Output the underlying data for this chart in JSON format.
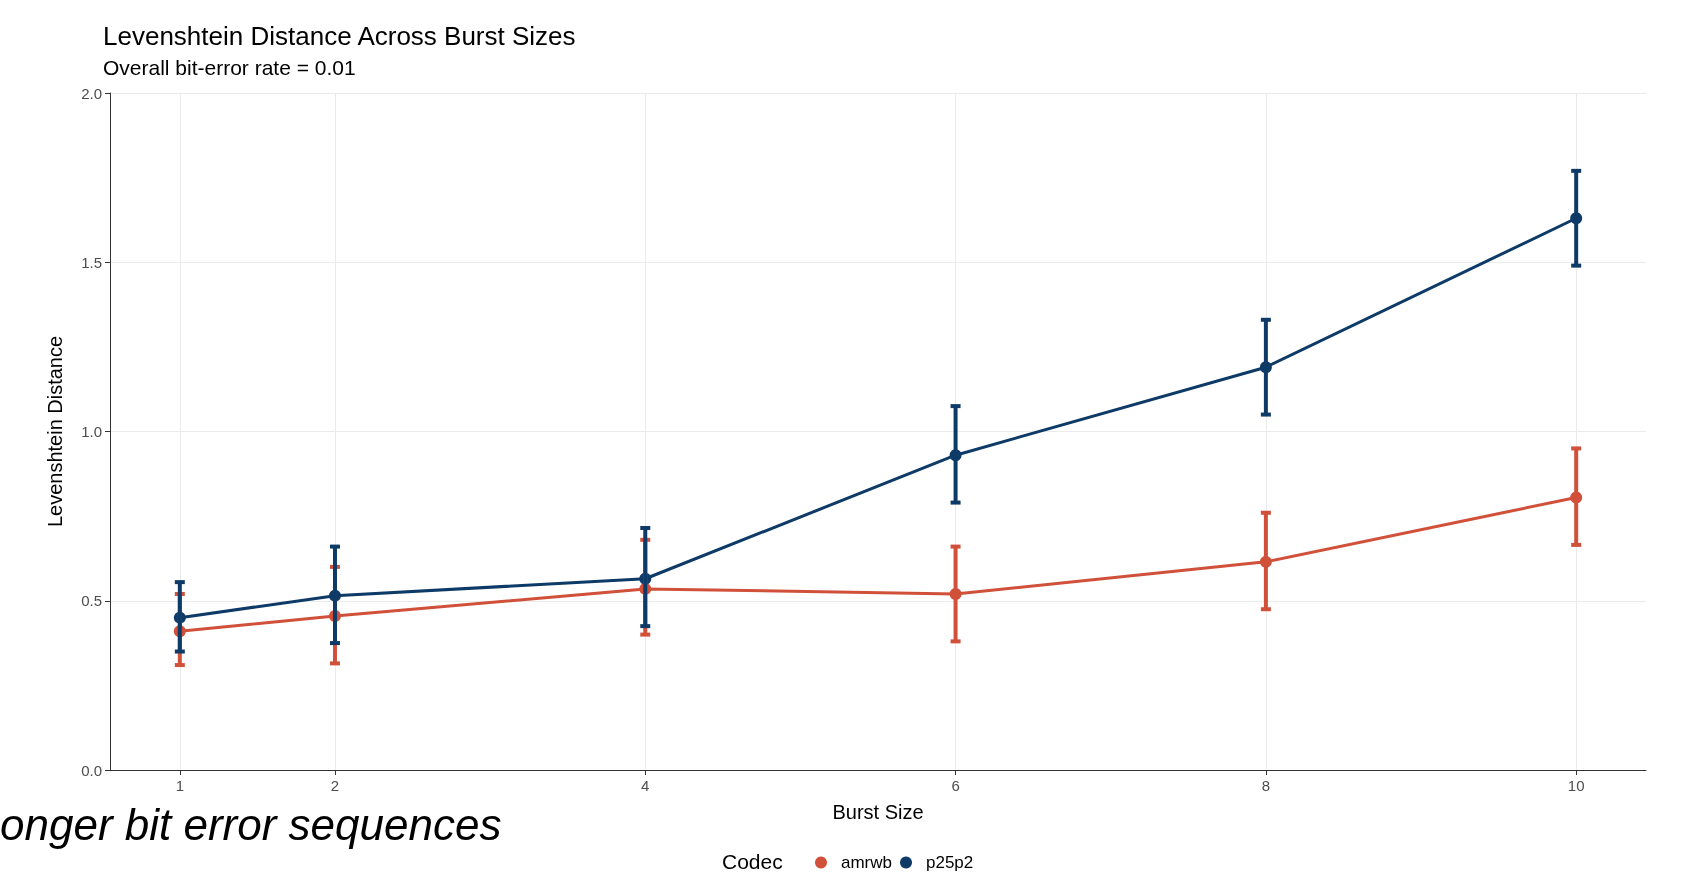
{
  "chart_data": {
    "type": "line",
    "title": "Levenshtein Distance Across Burst Sizes",
    "subtitle": "Overall bit-error rate = 0.01",
    "xlabel": "Burst Size",
    "ylabel": "Levenshtein Distance",
    "legend_title": "Codec",
    "x": [
      1,
      2,
      4,
      6,
      8,
      10
    ],
    "series": [
      {
        "name": "amrwb",
        "color": "#d1503a",
        "values": [
          0.41,
          0.455,
          0.535,
          0.52,
          0.615,
          0.805
        ],
        "errors": [
          [
            0.31,
            0.52
          ],
          [
            0.315,
            0.6
          ],
          [
            0.4,
            0.68
          ],
          [
            0.38,
            0.66
          ],
          [
            0.475,
            0.76
          ],
          [
            0.665,
            0.95
          ]
        ]
      },
      {
        "name": "p25p2",
        "color": "#0d3a66",
        "values": [
          0.45,
          0.515,
          0.565,
          0.93,
          1.19,
          1.63
        ],
        "errors": [
          [
            0.35,
            0.555
          ],
          [
            0.375,
            0.66
          ],
          [
            0.425,
            0.715
          ],
          [
            0.79,
            1.075
          ],
          [
            1.05,
            1.33
          ],
          [
            1.49,
            1.77
          ]
        ]
      }
    ],
    "xlim": [
      0.55,
      10.45
    ],
    "xticks": [
      1,
      2,
      4,
      6,
      8,
      10
    ],
    "ylim": [
      0,
      2
    ],
    "yticks": [
      {
        "value": 0,
        "label": "0.0"
      },
      0.5,
      {
        "value": 1,
        "label": "1.0"
      },
      1.5,
      {
        "value": 2,
        "label": "2.0"
      }
    ],
    "grid": true,
    "legend": "bottom",
    "marker": "circle",
    "line_style": "solid",
    "annotations": [
      "onger bit error sequences"
    ]
  }
}
